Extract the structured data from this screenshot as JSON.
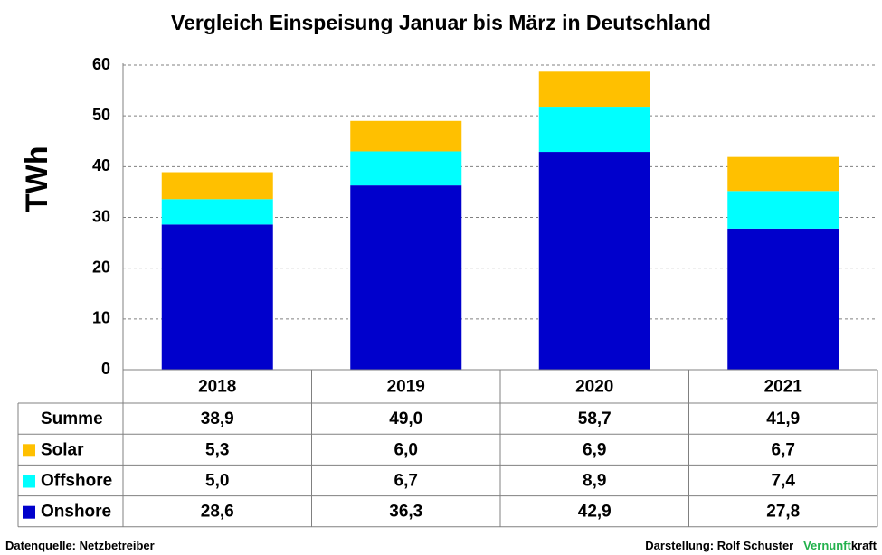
{
  "chart_data": {
    "type": "bar",
    "stacked": true,
    "title": "Vergleich Einspeisung Januar bis März in Deutschland",
    "ylabel": "TWh",
    "ylim": [
      0,
      60
    ],
    "yticks": [
      "0",
      "10",
      "20",
      "30",
      "40",
      "50",
      "60"
    ],
    "grid": true,
    "categories": [
      "2018",
      "2019",
      "2020",
      "2021"
    ],
    "series": [
      {
        "name": "Onshore",
        "color": "#0000cc",
        "values": [
          28.6,
          36.3,
          42.9,
          27.8
        ],
        "labels": [
          "28,6",
          "36,3",
          "42,9",
          "27,8"
        ]
      },
      {
        "name": "Offshore",
        "color": "#00ffff",
        "values": [
          5.0,
          6.7,
          8.9,
          7.4
        ],
        "labels": [
          "5,0",
          "6,7",
          "8,9",
          "7,4"
        ]
      },
      {
        "name": "Solar",
        "color": "#ffc000",
        "values": [
          5.3,
          6.0,
          6.9,
          6.7
        ],
        "labels": [
          "5,3",
          "6,0",
          "6,9",
          "6,7"
        ]
      }
    ],
    "table": {
      "sum_label": "Summe",
      "sum_values": [
        "38,9",
        "49,0",
        "58,7",
        "41,9"
      ]
    }
  },
  "footer": {
    "source": "Datenquelle: Netzbetreiber",
    "credit": "Darstellung:  Rolf Schuster",
    "brand_part1": "Vernunft",
    "brand_part2": "kraft"
  }
}
